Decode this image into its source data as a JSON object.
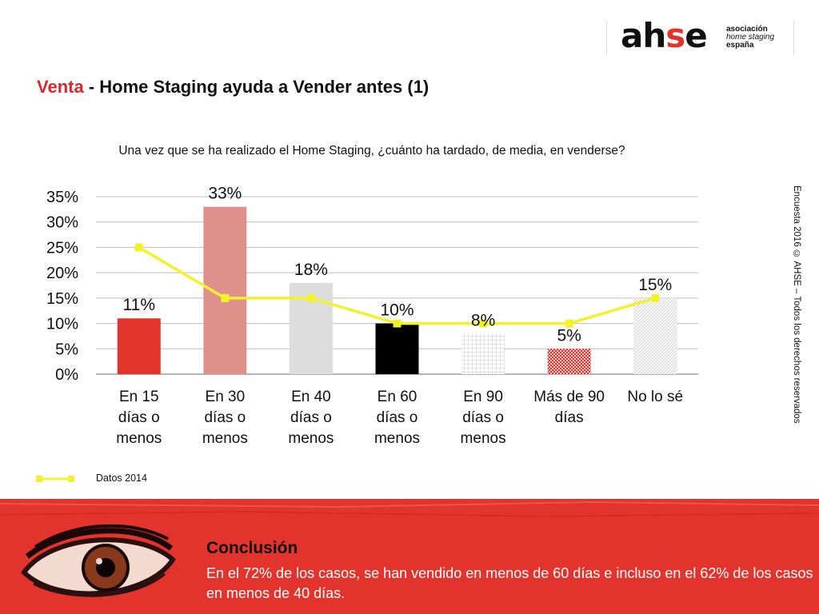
{
  "logo": {
    "wordmark_a": "ah",
    "wordmark_s": "s",
    "wordmark_e": "e",
    "line1": "asociación",
    "line2": "home staging",
    "line3": "españa"
  },
  "header": {
    "title_accent": "Venta",
    "title_rest": " - Home Staging ayuda a Vender antes (1)"
  },
  "side_note": "Encuesta 2016 © AHSE – Todos los derechos reservados",
  "legend": {
    "line_label": "Datos 2014"
  },
  "conclusion": {
    "title": "Conclusión",
    "text": "En el 72% de los casos, se han vendido en menos de 60 días e incluso en el 62% de los casos en menos de 40 días."
  },
  "colors": {
    "accent_red": "#e2342c",
    "title_red": "#d7282f",
    "line_yellow": "#f2f22a",
    "bar_fills": [
      "#e2342c",
      "#e0908a",
      "#dcdcdc",
      "#000000",
      "#d4d4d4",
      "#e2342c",
      "#d8d8d8"
    ]
  },
  "chart_data": {
    "type": "bar",
    "title": "Una vez que se ha realizado el Home Staging, ¿cuánto ha tardado, de media, en venderse?",
    "xlabel": "",
    "ylabel": "",
    "categories": [
      [
        "En 15",
        "días o",
        "menos"
      ],
      [
        "En 30",
        "días o",
        "menos"
      ],
      [
        "En 40",
        "días o",
        "menos"
      ],
      [
        "En 60",
        "días o",
        "menos"
      ],
      [
        "En 90",
        "días o",
        "menos"
      ],
      [
        "Más de 90",
        "días"
      ],
      [
        "No lo sé"
      ]
    ],
    "series": [
      {
        "name": "",
        "kind": "bar",
        "values": [
          11,
          33,
          18,
          10,
          8,
          5,
          15
        ]
      },
      {
        "name": "Datos 2014",
        "kind": "line",
        "values": [
          25,
          15,
          15,
          10,
          10,
          10,
          15
        ]
      }
    ],
    "data_labels": [
      "11%",
      "33%",
      "18%",
      "10%",
      "8%",
      "5%",
      "15%"
    ],
    "yticks": [
      "0%",
      "5%",
      "10%",
      "15%",
      "20%",
      "25%",
      "30%",
      "35%"
    ],
    "ylim": [
      0,
      35
    ],
    "grid": true,
    "legend_position": "bottom-left"
  }
}
